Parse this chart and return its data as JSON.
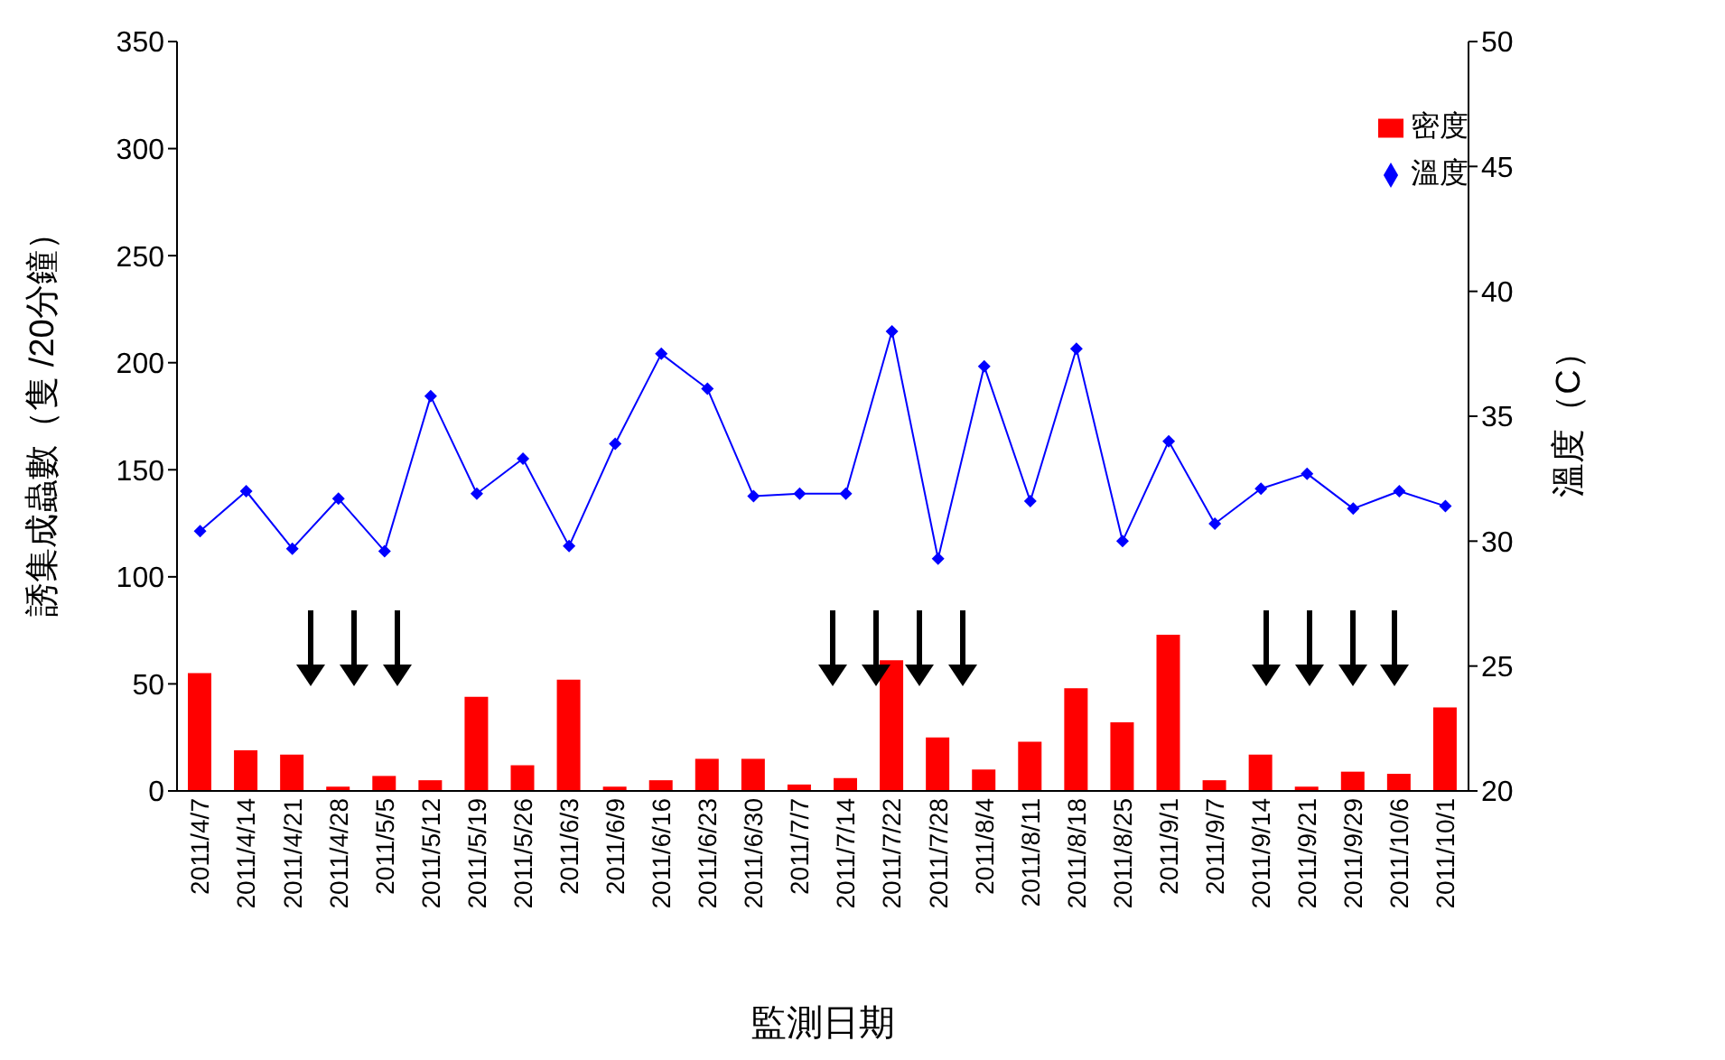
{
  "chart_data": {
    "type": "bar",
    "xlabel": "監測日期",
    "ylabel": "誘集成蟲數（隻 /20分鐘）",
    "y2label": "溫度（C）",
    "categories": [
      "2011/4/7",
      "2011/4/14",
      "2011/4/21",
      "2011/4/28",
      "2011/5/5",
      "2011/5/12",
      "2011/5/19",
      "2011/5/26",
      "2011/6/3",
      "2011/6/9",
      "2011/6/16",
      "2011/6/23",
      "2011/6/30",
      "2011/7/7",
      "2011/7/14",
      "2011/7/22",
      "2011/7/28",
      "2011/8/4",
      "2011/8/11",
      "2011/8/18",
      "2011/8/25",
      "2011/9/1",
      "2011/9/7",
      "2011/9/14",
      "2011/9/21",
      "2011/9/29",
      "2011/10/6",
      "2011/10/1"
    ],
    "series": [
      {
        "name": "密度",
        "color": "#ff0000",
        "values": [
          55,
          19,
          17,
          2,
          7,
          5,
          44,
          12,
          52,
          2,
          5,
          15,
          15,
          3,
          6,
          61,
          25,
          10,
          23,
          48,
          32,
          73,
          5,
          17,
          2,
          9,
          8,
          39
        ]
      },
      {
        "name": "溫度",
        "type": "line",
        "axis": "y2",
        "color": "#0000ff",
        "marker": "diamond",
        "values": [
          30.4,
          32.0,
          29.7,
          31.7,
          29.6,
          35.8,
          31.9,
          33.3,
          29.8,
          33.9,
          37.5,
          36.1,
          31.8,
          31.9,
          31.9,
          38.4,
          29.3,
          37.0,
          31.6,
          37.7,
          30.0,
          34.0,
          30.7,
          32.1,
          32.7,
          31.3,
          32.0,
          31.4
        ]
      }
    ],
    "ylim": [
      0,
      350
    ],
    "yticks": [
      0,
      50,
      100,
      150,
      200,
      250,
      300,
      350
    ],
    "y2lim": [
      20,
      50
    ],
    "y2ticks": [
      20,
      25,
      30,
      35,
      40,
      45,
      50
    ],
    "legend": "top right"
  }
}
